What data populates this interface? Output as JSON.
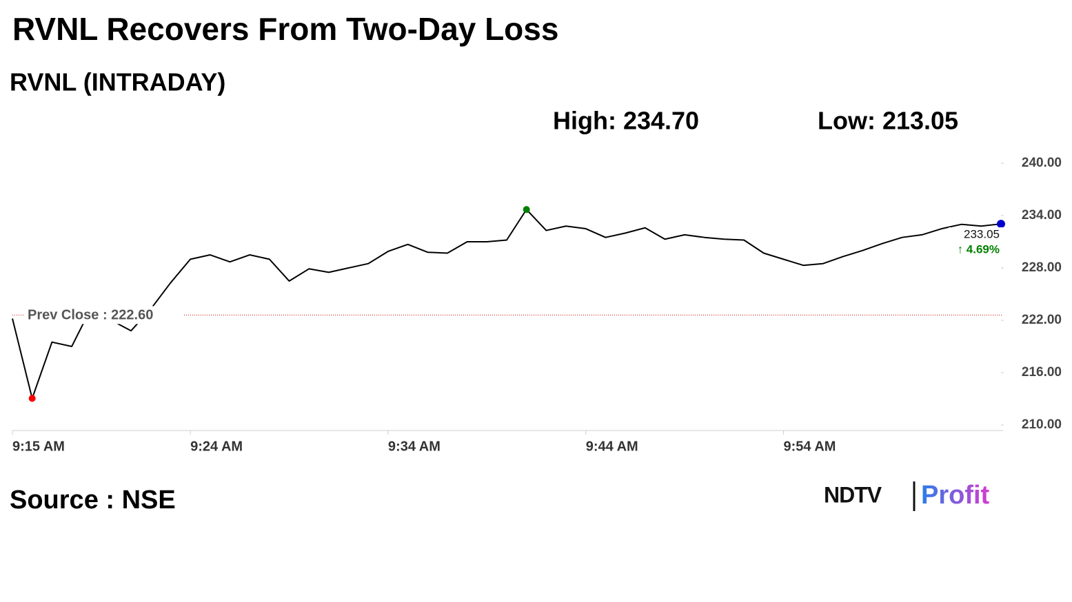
{
  "chart_data": {
    "type": "line",
    "title": "RVNL Recovers From Two-Day Loss",
    "subtitle": "RVNL (INTRADAY)",
    "high_label": "High: 234.70",
    "low_label": "Low: 213.05",
    "prev_close": 222.6,
    "prev_close_label": "Prev Close : 222.60",
    "last_label": "233.05",
    "change_label": "↑ 4.69%",
    "source": "Source : NSE",
    "brand": {
      "name": "NDTV",
      "product": "Profit"
    },
    "x": [
      "9:15 AM",
      null,
      null,
      null,
      null,
      null,
      null,
      null,
      null,
      "9:24 AM",
      null,
      null,
      null,
      null,
      null,
      null,
      null,
      null,
      null,
      "9:34 AM",
      null,
      null,
      null,
      null,
      null,
      null,
      null,
      null,
      null,
      "9:44 AM",
      null,
      null,
      null,
      null,
      null,
      null,
      null,
      null,
      null,
      "9:54 AM",
      null,
      null,
      null,
      null,
      null,
      null,
      null,
      null,
      null,
      null,
      null
    ],
    "series": [
      {
        "name": "RVNL",
        "color": "#000000",
        "values": [
          222.2,
          213.05,
          219.5,
          219.0,
          223.5,
          222.0,
          220.8,
          223.3,
          226.3,
          229.0,
          229.5,
          228.7,
          229.5,
          229.0,
          226.5,
          227.9,
          227.5,
          228.0,
          228.5,
          229.9,
          230.7,
          229.8,
          229.7,
          231.0,
          231.0,
          231.2,
          234.7,
          232.3,
          232.8,
          232.5,
          231.5,
          232.0,
          232.6,
          231.3,
          231.8,
          231.5,
          231.3,
          231.2,
          229.7,
          229.0,
          228.3,
          228.5,
          229.3,
          230.0,
          230.8,
          231.5,
          231.8,
          232.5,
          233.0,
          232.8,
          233.05
        ]
      }
    ],
    "high_color": "#008000",
    "low_color": "#ff0000",
    "last_color": "#0000cc",
    "prev_close_color": "#cc0000",
    "ylim": [
      209.37,
      240.95
    ],
    "yticks": [
      {
        "value": 210,
        "label": "210.00"
      },
      {
        "value": 216,
        "label": "216.00"
      },
      {
        "value": 222,
        "label": "222.00"
      },
      {
        "value": 228,
        "label": "228.00"
      },
      {
        "value": 234,
        "label": "234.00"
      },
      {
        "value": 240,
        "label": "240.00"
      }
    ],
    "grid": false
  }
}
